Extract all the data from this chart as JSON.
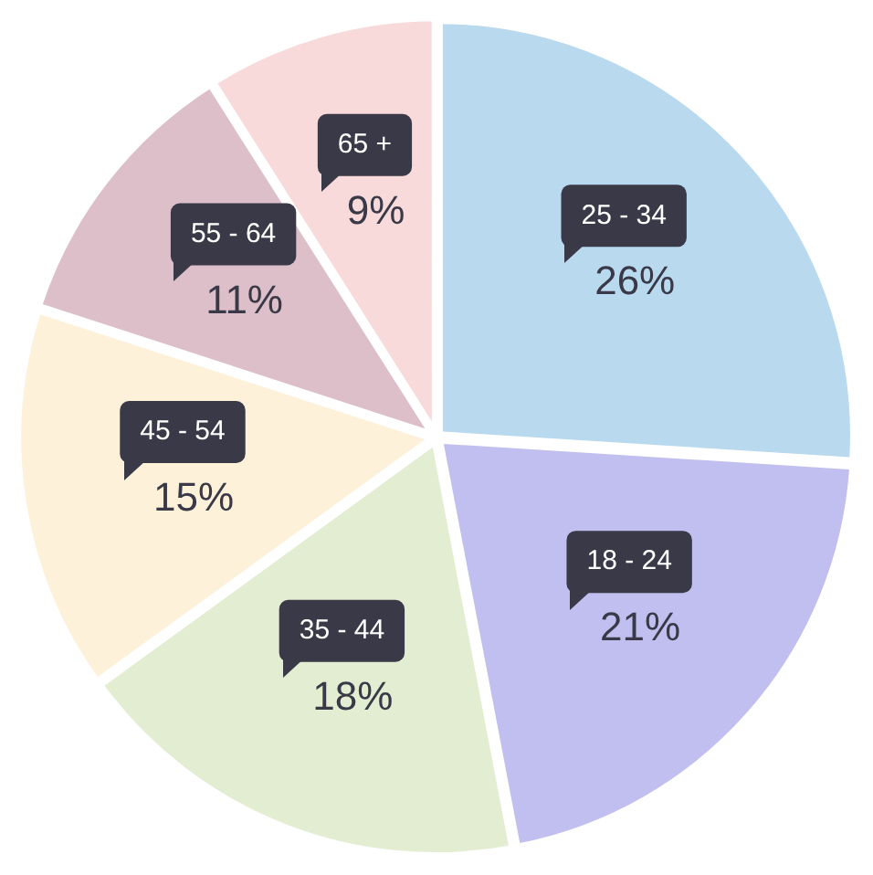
{
  "chart_data": {
    "type": "pie",
    "categories": [
      "25 - 34",
      "18 - 24",
      "35 - 44",
      "45 - 54",
      "55 - 64",
      "65 +"
    ],
    "values": [
      26,
      21,
      18,
      15,
      11,
      9
    ],
    "value_labels": [
      "26%",
      "21%",
      "18%",
      "15%",
      "11%",
      "9%"
    ],
    "colors": [
      "#b9d9ee",
      "#c0bfef",
      "#e3edd2",
      "#fdf1da",
      "#dcbfc8",
      "#f8dadb"
    ],
    "legend": false
  }
}
